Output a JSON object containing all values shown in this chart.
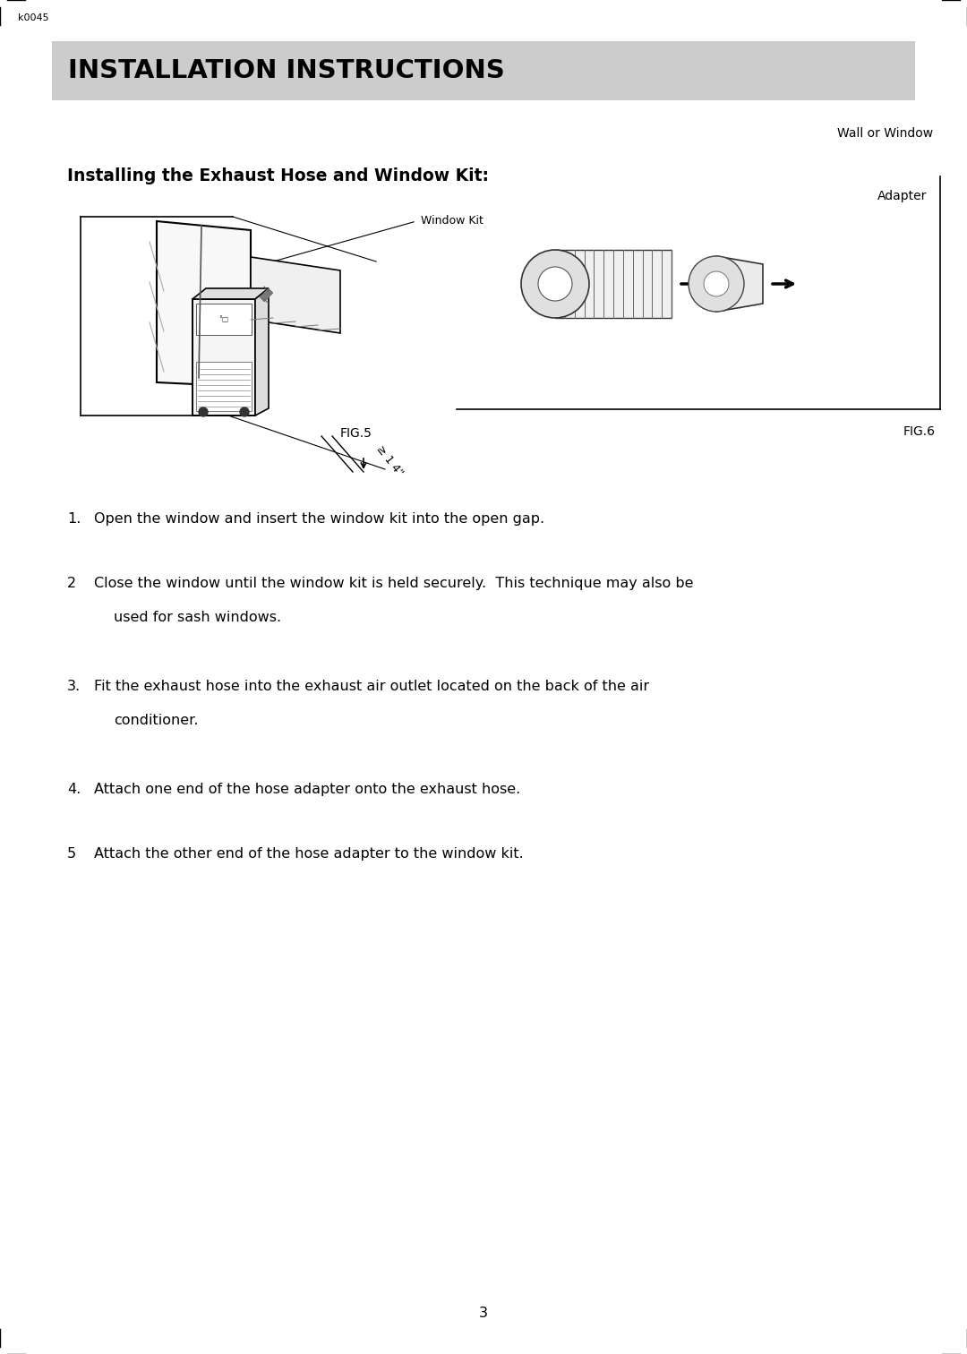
{
  "page_number": "3",
  "watermark": "k0045",
  "header_title": "INSTALLATION INSTRUCTIONS",
  "header_bg": "#cccccc",
  "section_title": "Installing the Exhaust Hose and Window Kit:",
  "fig5_label": "FIG.5",
  "fig6_label": "FIG.6",
  "fig6_wall_label": "Wall or Window",
  "fig6_adapter_label": "Adapter",
  "fig5_window_kit_label": "Window Kit",
  "background_color": "#ffffff",
  "text_color": "#000000",
  "header_text_color": "#000000",
  "instructions": [
    {
      "num": "1.",
      "tab": 28,
      "lines": [
        "Open the window and insert the window kit into the open gap."
      ]
    },
    {
      "num": "2",
      "tab": 22,
      "lines": [
        "Close the window until the window kit is held securely.  This technique may also be",
        "used for sash windows."
      ]
    },
    {
      "num": "3.",
      "tab": 28,
      "lines": [
        "Fit the exhaust hose into the exhaust air outlet located on the back of the air",
        "conditioner."
      ]
    },
    {
      "num": "4.",
      "tab": 28,
      "lines": [
        "Attach one end of the hose adapter onto the exhaust hose."
      ]
    },
    {
      "num": "5",
      "tab": 22,
      "lines": [
        "Attach the other end of the hose adapter to the window kit."
      ]
    }
  ]
}
